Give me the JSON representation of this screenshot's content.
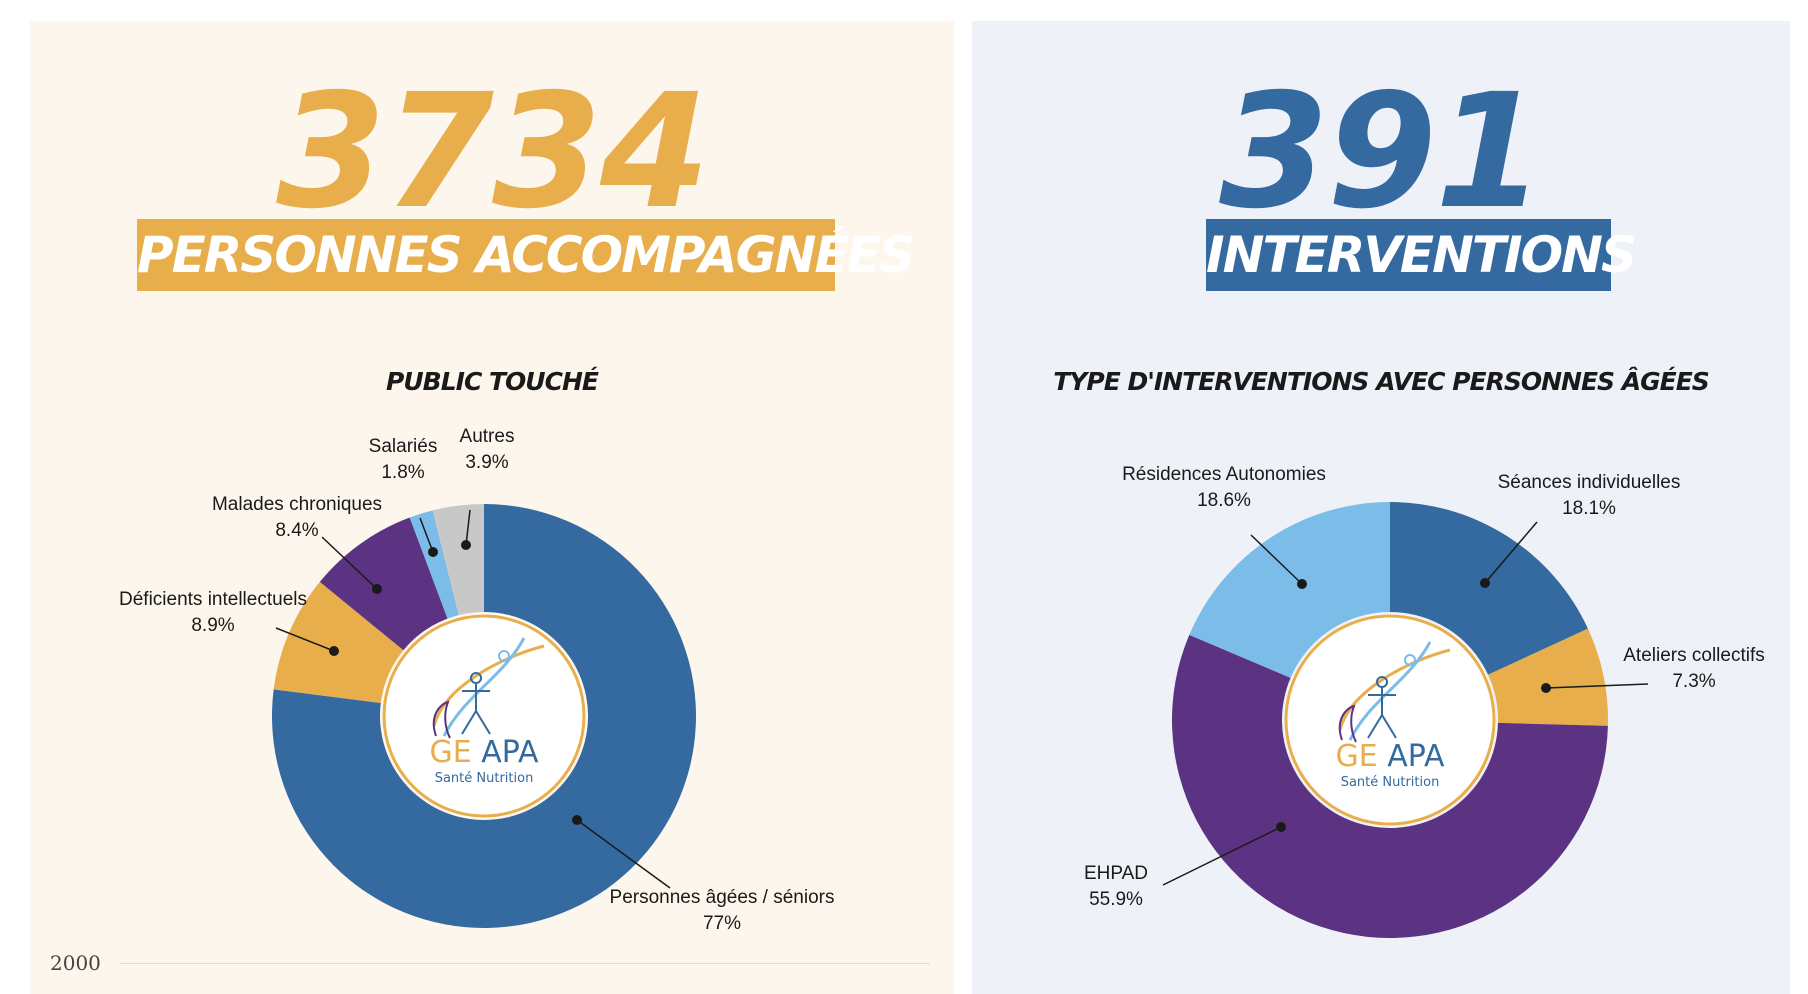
{
  "left": {
    "big_number": "3734",
    "banner": "PERSONNES ACCOMPAGNÉES",
    "footer_number": "2000"
  },
  "right": {
    "big_number": "391",
    "banner": "INTERVENTIONS"
  },
  "logo": {
    "name": "GE APA",
    "tagline": "Santé Nutrition"
  },
  "chart_data": [
    {
      "type": "pie",
      "title": "PUBLIC TOUCHÉ",
      "categories": [
        "Personnes âgées / séniors",
        "Déficients intellectuels",
        "Malades chroniques",
        "Salariés",
        "Autres"
      ],
      "values": [
        77,
        8.9,
        8.4,
        1.8,
        3.9
      ],
      "value_labels": [
        "77%",
        "8.9%",
        "8.4%",
        "1.8%",
        "3.9%"
      ],
      "colors": [
        "#346a9f",
        "#e8ae4c",
        "#5c3282",
        "#7bbde8",
        "#c8c8c8"
      ],
      "donut": true
    },
    {
      "type": "pie",
      "title": "TYPE D'INTERVENTIONS AVEC PERSONNES ÂGÉES",
      "categories": [
        "Séances individuelles",
        "Ateliers collectifs",
        "EHPAD",
        "Résidences Autonomies"
      ],
      "values": [
        18.1,
        7.3,
        55.9,
        18.6
      ],
      "value_labels": [
        "18.1%",
        "7.3%",
        "55.9%",
        "18.6%"
      ],
      "colors": [
        "#346a9f",
        "#e8ae4c",
        "#5c3282",
        "#7bbde8"
      ],
      "donut": true
    }
  ]
}
